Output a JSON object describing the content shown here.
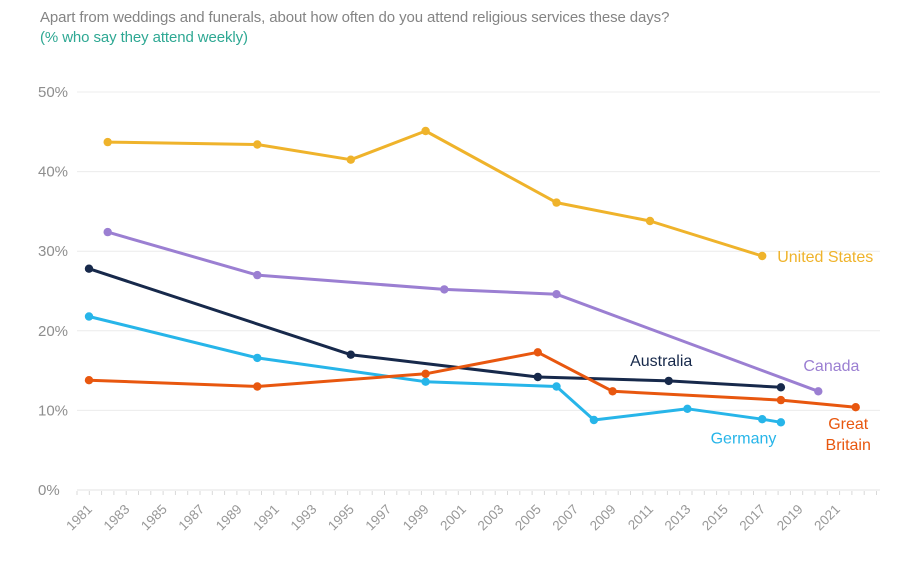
{
  "header": {
    "title": "Apart from weddings and funerals, about how often do you attend religious services these days?",
    "subtitle": "(% who say they attend weekly)"
  },
  "colors": {
    "title_gray": "#848484",
    "subtitle_teal": "#2EA893",
    "y_label_gray": "#8E8E8E",
    "x_label_gray": "#989898",
    "gridline": "#ECECEC",
    "axis_line": "#E3E3E3",
    "tick": "#D9D9D9",
    "background": "#FFFFFF"
  },
  "chart_data": {
    "type": "line",
    "title": "Apart from weddings and funerals, about how often do you attend religious services these days?",
    "subtitle": "(% who say they attend weekly)",
    "xlabel": "",
    "ylabel": "% who say they attend weekly",
    "ylim": [
      0,
      50
    ],
    "xlim": [
      1980.3,
      2023.3
    ],
    "grid": "horizontal",
    "legend_position": "end-of-line-labels",
    "y_axis": {
      "tick_values": [
        0,
        10,
        20,
        30,
        40,
        50
      ],
      "tick_labels": [
        "0%",
        "10%",
        "20%",
        "30%",
        "40%",
        "50%"
      ]
    },
    "x_axis": {
      "tick_years": [
        1981,
        1983,
        1985,
        1987,
        1989,
        1991,
        1993,
        1995,
        1997,
        1999,
        2001,
        2003,
        2005,
        2007,
        2009,
        2011,
        2013,
        2015,
        2017,
        2019,
        2021
      ]
    },
    "series": [
      {
        "name": "United States",
        "color": "#EFB32B",
        "points": [
          [
            1982,
            43.7
          ],
          [
            1990,
            43.4
          ],
          [
            1995,
            41.5
          ],
          [
            1999,
            45.1
          ],
          [
            2006,
            36.1
          ],
          [
            2011,
            33.8
          ],
          [
            2017,
            29.4
          ]
        ],
        "label": {
          "text": [
            "United States"
          ],
          "year": 2017.8,
          "value": 29.3,
          "anchor": "start"
        }
      },
      {
        "name": "Canada",
        "color": "#9B7FD2",
        "points": [
          [
            1982,
            32.4
          ],
          [
            1990,
            27.0
          ],
          [
            2000,
            25.2
          ],
          [
            2006,
            24.6
          ],
          [
            2020,
            12.4
          ]
        ],
        "label": {
          "text": [
            "Canada"
          ],
          "year": 2020.7,
          "value": 15.6,
          "anchor": "middle"
        }
      },
      {
        "name": "Australia",
        "color": "#17294B",
        "points": [
          [
            1981,
            27.8
          ],
          [
            1995,
            17.0
          ],
          [
            2005,
            14.2
          ],
          [
            2012,
            13.7
          ],
          [
            2018,
            12.9
          ]
        ],
        "label": {
          "text": [
            "Australia"
          ],
          "year": 2011.6,
          "value": 16.2,
          "anchor": "middle"
        }
      },
      {
        "name": "Germany",
        "color": "#27B5E9",
        "points": [
          [
            1981,
            21.8
          ],
          [
            1990,
            16.6
          ],
          [
            1999,
            13.6
          ],
          [
            2006,
            13.0
          ],
          [
            2008,
            8.8
          ],
          [
            2013,
            10.2
          ],
          [
            2017,
            8.9
          ],
          [
            2018,
            8.5
          ]
        ],
        "label": {
          "text": [
            "Germany"
          ],
          "year": 2016.0,
          "value": 6.5,
          "anchor": "middle"
        }
      },
      {
        "name": "Great Britain",
        "color": "#E8570F",
        "points": [
          [
            1981,
            13.8
          ],
          [
            1990,
            13.0
          ],
          [
            1999,
            14.6
          ],
          [
            2005,
            17.3
          ],
          [
            2009,
            12.4
          ],
          [
            2018,
            11.3
          ],
          [
            2022,
            10.4
          ]
        ],
        "label": {
          "text": [
            "Great",
            "Britain"
          ],
          "year": 2021.6,
          "value": 8.3,
          "anchor": "middle"
        }
      }
    ]
  }
}
